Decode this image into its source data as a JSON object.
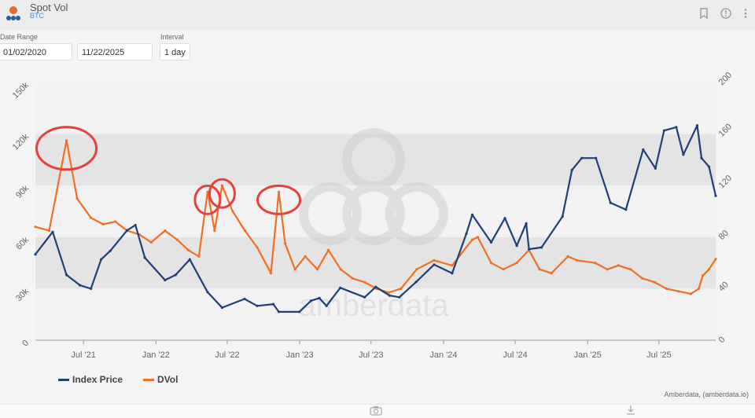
{
  "header": {
    "title": "Spot Vol",
    "subtitle": "BTC"
  },
  "controls": {
    "date_range_label": "Date Range",
    "start_date": "01/02/2020",
    "end_date": "11/22/2025",
    "interval_label": "Interval",
    "interval_value": "1 day"
  },
  "icons": {
    "bookmark": "bookmark-icon",
    "info": "info-icon",
    "menu": "more-vert-icon",
    "camera": "camera-icon",
    "download": "download-icon"
  },
  "colors": {
    "index_price": "#1f3f77",
    "dvol": "#ef7024",
    "annotation": "#e8403c"
  },
  "legend": {
    "index_price": "Index Price",
    "dvol": "DVol"
  },
  "credits": "Amberdata, (amberdata.io)",
  "watermark": "amberdata",
  "chart_data": {
    "type": "line",
    "title": "",
    "x_ticks": [
      "Jul '21",
      "Jan '22",
      "Jul '22",
      "Jan '23",
      "Jul '23",
      "Jan '24",
      "Jul '24",
      "Jan '25",
      "Jul '25"
    ],
    "y_left_ticks": [
      "0",
      "30k",
      "60k",
      "90k",
      "120k",
      "150k"
    ],
    "y_right_ticks": [
      "0",
      "40",
      "80",
      "120",
      "160",
      "200"
    ],
    "y_left_range": [
      0,
      150000
    ],
    "y_right_range": [
      0,
      200
    ],
    "x_range": [
      "2021-03-01",
      "2025-11-22"
    ],
    "grid": "alternating horizontal bands",
    "legend_position": "bottom-left",
    "annotations": [
      "2021-05-19",
      "2022-05-12",
      "2022-06-18",
      "2022-11-09"
    ],
    "series": [
      {
        "name": "Index Price",
        "axis": "left",
        "points": [
          [
            "2021-03-01",
            50000
          ],
          [
            "2021-04-14",
            63000
          ],
          [
            "2021-05-19",
            38000
          ],
          [
            "2021-06-22",
            32000
          ],
          [
            "2021-07-20",
            30000
          ],
          [
            "2021-08-15",
            47000
          ],
          [
            "2021-09-07",
            52000
          ],
          [
            "2021-10-20",
            64000
          ],
          [
            "2021-11-10",
            67000
          ],
          [
            "2021-12-04",
            48000
          ],
          [
            "2022-01-24",
            35000
          ],
          [
            "2022-02-20",
            38000
          ],
          [
            "2022-03-28",
            47000
          ],
          [
            "2022-05-12",
            28000
          ],
          [
            "2022-06-18",
            19000
          ],
          [
            "2022-08-14",
            24000
          ],
          [
            "2022-09-15",
            20000
          ],
          [
            "2022-10-26",
            21000
          ],
          [
            "2022-11-09",
            16500
          ],
          [
            "2022-12-31",
            16500
          ],
          [
            "2023-01-30",
            23000
          ],
          [
            "2023-02-20",
            24500
          ],
          [
            "2023-03-10",
            20000
          ],
          [
            "2023-04-14",
            30500
          ],
          [
            "2023-06-15",
            25000
          ],
          [
            "2023-07-13",
            31000
          ],
          [
            "2023-08-17",
            26000
          ],
          [
            "2023-09-11",
            25000
          ],
          [
            "2023-10-24",
            34000
          ],
          [
            "2023-12-08",
            44000
          ],
          [
            "2024-01-23",
            39000
          ],
          [
            "2024-02-28",
            62000
          ],
          [
            "2024-03-14",
            73000
          ],
          [
            "2024-05-01",
            57000
          ],
          [
            "2024-06-05",
            71000
          ],
          [
            "2024-07-05",
            55000
          ],
          [
            "2024-07-29",
            68000
          ],
          [
            "2024-08-05",
            53000
          ],
          [
            "2024-09-06",
            54000
          ],
          [
            "2024-10-29",
            72000
          ],
          [
            "2024-11-22",
            99000
          ],
          [
            "2024-12-17",
            106000
          ],
          [
            "2025-01-22",
            106000
          ],
          [
            "2025-02-28",
            80000
          ],
          [
            "2025-04-08",
            76000
          ],
          [
            "2025-05-22",
            111000
          ],
          [
            "2025-06-22",
            100000
          ],
          [
            "2025-07-14",
            122000
          ],
          [
            "2025-08-14",
            124000
          ],
          [
            "2025-09-01",
            108000
          ],
          [
            "2025-10-06",
            125000
          ],
          [
            "2025-10-17",
            106000
          ],
          [
            "2025-11-05",
            101000
          ],
          [
            "2025-11-22",
            84000
          ]
        ]
      },
      {
        "name": "DVol",
        "axis": "right",
        "points": [
          [
            "2021-03-01",
            88
          ],
          [
            "2021-04-05",
            85
          ],
          [
            "2021-05-19",
            155
          ],
          [
            "2021-06-15",
            110
          ],
          [
            "2021-07-20",
            95
          ],
          [
            "2021-08-20",
            90
          ],
          [
            "2021-09-20",
            92
          ],
          [
            "2021-10-20",
            85
          ],
          [
            "2021-11-20",
            82
          ],
          [
            "2021-12-20",
            76
          ],
          [
            "2022-01-24",
            85
          ],
          [
            "2022-02-24",
            78
          ],
          [
            "2022-03-24",
            70
          ],
          [
            "2022-04-20",
            65
          ],
          [
            "2022-05-12",
            115
          ],
          [
            "2022-05-30",
            85
          ],
          [
            "2022-06-18",
            120
          ],
          [
            "2022-07-15",
            100
          ],
          [
            "2022-08-15",
            85
          ],
          [
            "2022-09-15",
            72
          ],
          [
            "2022-10-20",
            52
          ],
          [
            "2022-11-09",
            115
          ],
          [
            "2022-11-25",
            75
          ],
          [
            "2022-12-20",
            55
          ],
          [
            "2023-01-15",
            65
          ],
          [
            "2023-02-15",
            55
          ],
          [
            "2023-03-15",
            70
          ],
          [
            "2023-04-15",
            55
          ],
          [
            "2023-05-15",
            48
          ],
          [
            "2023-06-15",
            45
          ],
          [
            "2023-07-15",
            40
          ],
          [
            "2023-08-15",
            37
          ],
          [
            "2023-09-15",
            40
          ],
          [
            "2023-10-25",
            55
          ],
          [
            "2023-12-08",
            62
          ],
          [
            "2024-01-23",
            58
          ],
          [
            "2024-03-14",
            78
          ],
          [
            "2024-03-28",
            80
          ],
          [
            "2024-05-01",
            60
          ],
          [
            "2024-06-01",
            55
          ],
          [
            "2024-07-05",
            60
          ],
          [
            "2024-08-05",
            70
          ],
          [
            "2024-09-01",
            55
          ],
          [
            "2024-10-01",
            52
          ],
          [
            "2024-11-12",
            65
          ],
          [
            "2024-12-05",
            62
          ],
          [
            "2025-01-20",
            60
          ],
          [
            "2025-02-20",
            55
          ],
          [
            "2025-03-20",
            58
          ],
          [
            "2025-04-20",
            55
          ],
          [
            "2025-05-20",
            48
          ],
          [
            "2025-06-20",
            45
          ],
          [
            "2025-07-20",
            40
          ],
          [
            "2025-08-20",
            38
          ],
          [
            "2025-09-20",
            36
          ],
          [
            "2025-10-10",
            40
          ],
          [
            "2025-10-20",
            50
          ],
          [
            "2025-11-05",
            55
          ],
          [
            "2025-11-22",
            63
          ]
        ]
      }
    ]
  }
}
